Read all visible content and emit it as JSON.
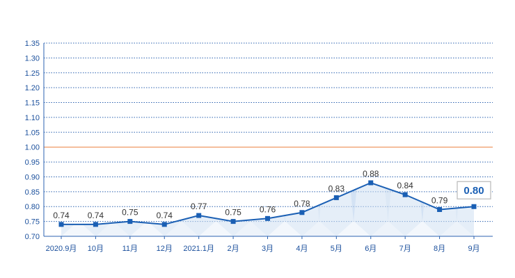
{
  "chart_data": {
    "type": "line",
    "title": "",
    "xlabel": "",
    "ylabel": "",
    "categories": [
      "2020.9月",
      "10月",
      "11月",
      "12月",
      "2021.1月",
      "2月",
      "3月",
      "4月",
      "5月",
      "6月",
      "7月",
      "8月",
      "9月"
    ],
    "series": [
      {
        "values": [
          0.74,
          0.74,
          0.75,
          0.74,
          0.77,
          0.75,
          0.76,
          0.78,
          0.83,
          0.88,
          0.84,
          0.79,
          0.8
        ],
        "labels": [
          "0.74",
          "0.74",
          "0.75",
          "0.74",
          "0.77",
          "0.75",
          "0.76",
          "0.78",
          "0.83",
          "0.88",
          "0.84",
          "0.79",
          "0.80"
        ]
      }
    ],
    "ylim": [
      0.7,
      1.35
    ],
    "yticks": [
      "0.70",
      "0.75",
      "0.80",
      "0.85",
      "0.90",
      "0.95",
      "1.00",
      "1.05",
      "1.10",
      "1.15",
      "1.20",
      "1.25",
      "1.30",
      "1.35"
    ],
    "reference_line": 1.0,
    "grid": true,
    "highlight_last": true,
    "colors": {
      "line": "#1a5fb4",
      "marker": "#1a5fb4",
      "grid": "#2b62b0",
      "reference": "#f0a070",
      "area": "#cfe0f3",
      "text": "#1a4f9c"
    }
  }
}
